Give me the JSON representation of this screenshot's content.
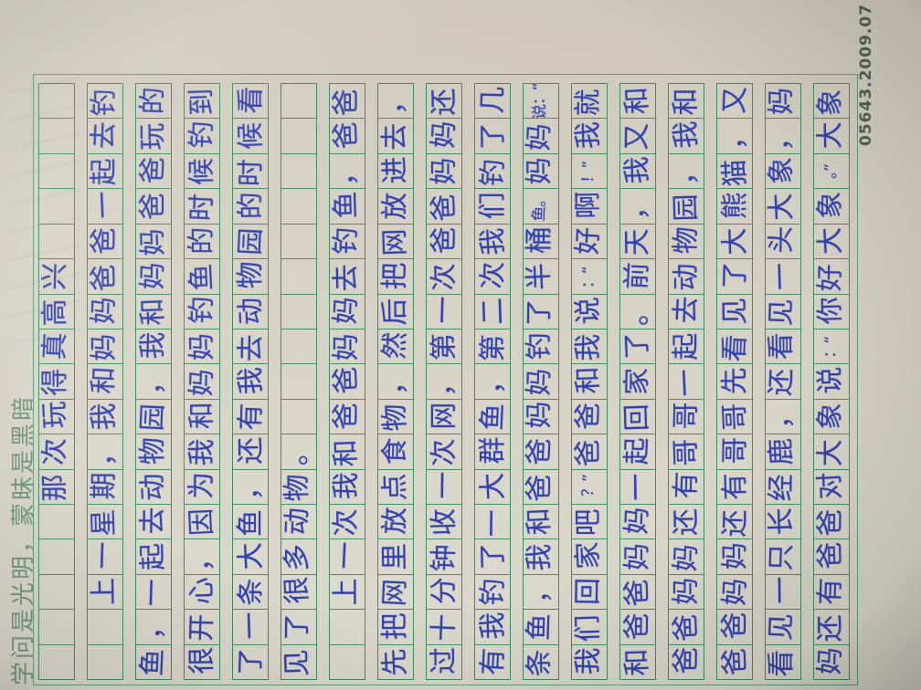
{
  "paper": {
    "slogan": "学问是光明，蒙昧是黑暗",
    "serial_number": "05643.2009.07 1",
    "essay": {
      "title": "那次玩得真高兴",
      "paragraphs": [
        "上一星期，我和妈妈爸爸一起去钓鱼，一起去动物园，我和妈妈爸爸玩的很开心，因为我和妈妈钓鱼的时候钓到了一条大鱼，还有我去动物园的时候看见了很多动物。",
        "上一次我和爸爸妈妈去钓鱼，爸爸先把网里放点食物，然后把网放进去，过十分钟收一次网，第一次爸爸妈妈还有我钓了一大群鱼，第二次我们钓了几条鱼，我和爸爸妈妈钓了半桶鱼。妈妈说：“我们回家吧？”爸爸和我说：“好啊！”我就和爸爸妈妈一起回家了。前天，我又和爸爸妈妈还有哥哥一起去动物园，我和爸爸妈妈还有哥哥先看见了大熊猫，又看见一只长经鹿，还看见一头大象，妈妈还有爸爸对大象说：“你好大象。”大象"
      ],
      "rows": [
        [
          "",
          "",
          "",
          "",
          "",
          "那",
          "次",
          "玩",
          "得",
          "真",
          "高",
          "兴",
          "",
          "",
          "",
          "",
          ""
        ],
        [
          "",
          "",
          "上",
          "一",
          "星",
          "期",
          "，",
          "我",
          "和",
          "妈",
          "妈",
          "爸",
          "爸",
          "一",
          "起",
          "去",
          "钓"
        ],
        [
          "鱼",
          "，",
          "一",
          "起",
          "去",
          "动",
          "物",
          "园",
          "，",
          "我",
          "和",
          "妈",
          "妈",
          "爸",
          "爸",
          "玩",
          "的"
        ],
        [
          "很",
          "开",
          "心",
          "，",
          "因",
          "为",
          "我",
          "和",
          "妈",
          "妈",
          "钓",
          "鱼",
          "的",
          "时",
          "候",
          "钓",
          "到"
        ],
        [
          "了",
          "一",
          "条",
          "大",
          "鱼",
          "，",
          "还",
          "有",
          "我",
          "去",
          "动",
          "物",
          "园",
          "的",
          "时",
          "候",
          "看"
        ],
        [
          "见",
          "了",
          "很",
          "多",
          "动",
          "物",
          "。",
          "",
          "",
          "",
          "",
          "",
          "",
          "",
          "",
          "",
          ""
        ],
        [
          "",
          "",
          "上",
          "一",
          "次",
          "我",
          "和",
          "爸",
          "爸",
          "妈",
          "妈",
          "去",
          "钓",
          "鱼",
          "，",
          "爸",
          "爸"
        ],
        [
          "先",
          "把",
          "网",
          "里",
          "放",
          "点",
          "食",
          "物",
          "，",
          "然",
          "后",
          "把",
          "网",
          "放",
          "进",
          "去",
          "，"
        ],
        [
          "过",
          "十",
          "分",
          "钟",
          "收",
          "一",
          "次",
          "网",
          "，",
          "第",
          "一",
          "次",
          "爸",
          "爸",
          "妈",
          "妈",
          "还"
        ],
        [
          "有",
          "我",
          "钓",
          "了",
          "一",
          "大",
          "群",
          "鱼",
          "，",
          "第",
          "二",
          "次",
          "我",
          "们",
          "钓",
          "了",
          "几"
        ],
        [
          "条",
          "鱼",
          "，",
          "我",
          "和",
          "爸",
          "爸",
          "妈",
          "妈",
          "钓",
          "了",
          "半",
          "桶",
          "鱼。",
          "妈",
          "妈",
          "说：“"
        ],
        [
          "我",
          "们",
          "回",
          "家",
          "吧",
          "？”",
          "爸",
          "爸",
          "和",
          "我",
          "说",
          "：“",
          "好",
          "啊",
          "！”",
          "我",
          "就"
        ],
        [
          "和",
          "爸",
          "爸",
          "妈",
          "妈",
          "一",
          "起",
          "回",
          "家",
          "了",
          "。",
          "前",
          "天",
          "，",
          "我",
          "又",
          "和"
        ],
        [
          "爸",
          "爸",
          "妈",
          "妈",
          "还",
          "有",
          "哥",
          "哥",
          "一",
          "起",
          "去",
          "动",
          "物",
          "园",
          "，",
          "我",
          "和"
        ],
        [
          "爸",
          "爸",
          "妈",
          "妈",
          "还",
          "有",
          "哥",
          "哥",
          "先",
          "看",
          "见",
          "了",
          "大",
          "熊",
          "猫",
          "，",
          "又"
        ],
        [
          "看",
          "见",
          "一",
          "只",
          "长",
          "经",
          "鹿",
          "，",
          "还",
          "看",
          "见",
          "一",
          "头",
          "大",
          "象",
          "，",
          "妈"
        ],
        [
          "妈",
          "还",
          "有",
          "爸",
          "爸",
          "对",
          "大",
          "象",
          "说",
          "：“",
          "你",
          "好",
          "大",
          "象",
          "。”",
          "大",
          "象"
        ]
      ]
    }
  }
}
